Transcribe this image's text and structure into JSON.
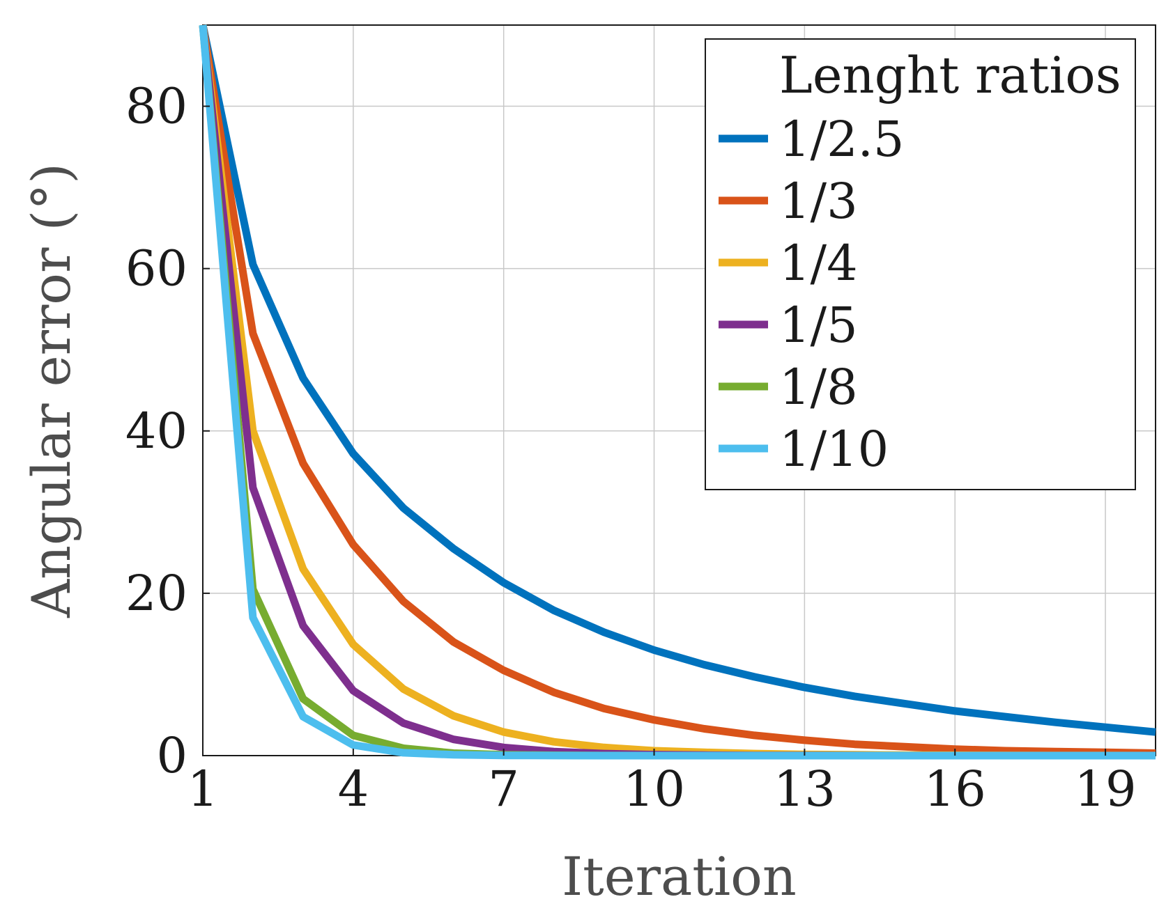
{
  "chart_data": {
    "type": "line",
    "xlabel": "Iteration",
    "ylabel": "Angular error (°)",
    "xlim": [
      1,
      20
    ],
    "ylim": [
      0,
      90
    ],
    "xticks": [
      1,
      4,
      7,
      10,
      13,
      16,
      19
    ],
    "yticks": [
      0,
      20,
      40,
      60,
      80
    ],
    "grid": true,
    "legend": {
      "title": "Lenght ratios",
      "position": "top-right"
    },
    "x": [
      1,
      2,
      3,
      4,
      5,
      6,
      7,
      8,
      9,
      10,
      11,
      12,
      13,
      14,
      15,
      16,
      17,
      18,
      19,
      20
    ],
    "series": [
      {
        "name": "1/2.5",
        "color": "#0072BD",
        "values": [
          90,
          60.5,
          46.5,
          37.2,
          30.5,
          25.5,
          21.3,
          17.9,
          15.2,
          13,
          11.2,
          9.7,
          8.4,
          7.3,
          6.4,
          5.5,
          4.8,
          4.1,
          3.5,
          2.9
        ]
      },
      {
        "name": "1/3",
        "color": "#D95319",
        "values": [
          90,
          52,
          36,
          26,
          19,
          14,
          10.5,
          7.8,
          5.8,
          4.4,
          3.3,
          2.5,
          1.9,
          1.4,
          1.1,
          0.8,
          0.6,
          0.5,
          0.4,
          0.3
        ]
      },
      {
        "name": "1/4",
        "color": "#EDB120",
        "values": [
          90,
          40,
          23,
          13.7,
          8.2,
          4.9,
          2.9,
          1.7,
          1.0,
          0.6,
          0.4,
          0.25,
          0.15,
          0.1,
          0.06,
          0.04,
          0.02,
          0.01,
          0.01,
          0
        ]
      },
      {
        "name": "1/5",
        "color": "#7E2F8E",
        "values": [
          90,
          33,
          16,
          8,
          4,
          2,
          1,
          0.5,
          0.25,
          0.12,
          0.06,
          0.03,
          0.02,
          0.01,
          0,
          0,
          0,
          0,
          0,
          0
        ]
      },
      {
        "name": "1/8",
        "color": "#77AC30",
        "values": [
          90,
          20.5,
          7,
          2.5,
          0.9,
          0.3,
          0.1,
          0.04,
          0.01,
          0,
          0,
          0,
          0,
          0,
          0,
          0,
          0,
          0,
          0,
          0
        ]
      },
      {
        "name": "1/10",
        "color": "#4DBEEE",
        "values": [
          90,
          17,
          4.8,
          1.3,
          0.35,
          0.1,
          0.03,
          0.01,
          0,
          0,
          0,
          0,
          0,
          0,
          0,
          0,
          0,
          0,
          0,
          0
        ]
      }
    ]
  }
}
